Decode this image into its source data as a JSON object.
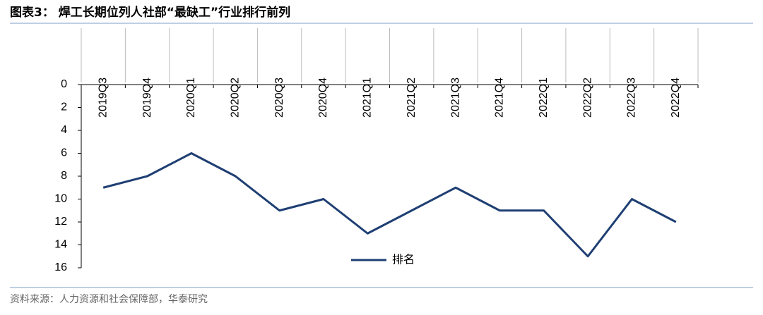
{
  "chart_data": {
    "type": "line",
    "title": "图表3：  焊工长期位列人社部“最缺工”行业排行前列",
    "source": "资料来源：人力资源和社会保障部，华泰研究",
    "categories": [
      "2019Q3",
      "2019Q4",
      "2020Q1",
      "2020Q2",
      "2020Q3",
      "2020Q4",
      "2021Q1",
      "2021Q2",
      "2021Q3",
      "2021Q4",
      "2022Q1",
      "2022Q2",
      "2022Q3",
      "2022Q4"
    ],
    "series": [
      {
        "name": "排名",
        "color": "#1f3f73",
        "values": [
          9,
          8,
          6,
          8,
          11,
          10,
          13,
          11,
          9,
          11,
          11,
          15,
          10,
          12
        ]
      }
    ],
    "ylim": [
      0,
      16
    ],
    "yticks": [
      0,
      2,
      4,
      6,
      8,
      10,
      12,
      14,
      16
    ],
    "y_inverted": true
  }
}
